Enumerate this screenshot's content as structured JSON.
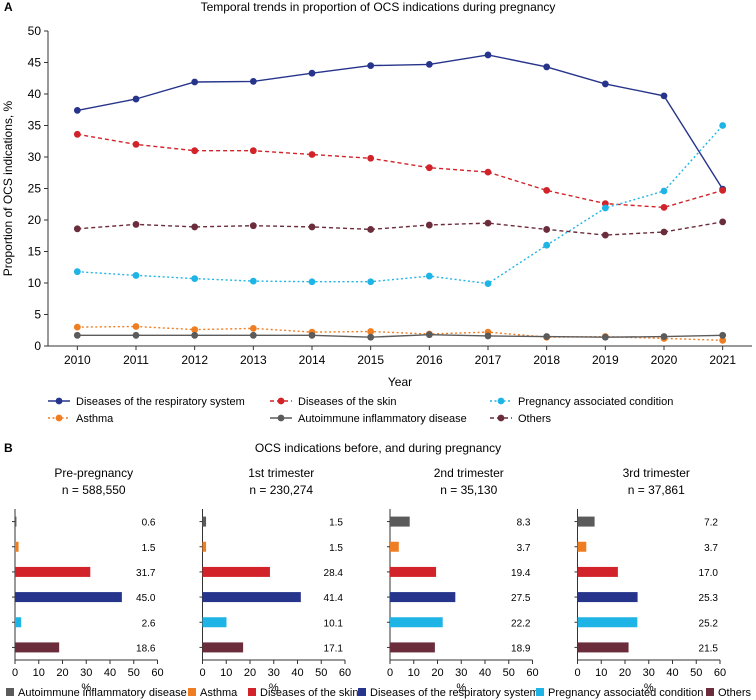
{
  "panelA": {
    "letter": "A"
  },
  "panelB": {
    "letter": "B"
  },
  "colors": {
    "respiratory": "#27348b",
    "skin": "#d2232a",
    "pregnancy": "#1fb4e6",
    "asthma": "#ef7d22",
    "autoimmune": "#5b5b5b",
    "others": "#6b2d3c"
  },
  "chart_data": [
    {
      "type": "line",
      "title": "Temporal trends in proportion of OCS indications during pregnancy",
      "xlabel": "Year",
      "ylabel": "Proportion of OCS indications, %",
      "ylim": [
        0,
        50
      ],
      "yticks": [
        "0",
        "5",
        "10",
        "15",
        "20",
        "25",
        "30",
        "35",
        "40",
        "45",
        "50"
      ],
      "x": [
        "2010",
        "2011",
        "2012",
        "2013",
        "2014",
        "2015",
        "2016",
        "2017",
        "2018",
        "2019",
        "2020",
        "2021"
      ],
      "series": [
        {
          "key": "respiratory",
          "name": "Diseases of the respiratory system",
          "style": "solid",
          "values": [
            37.4,
            39.2,
            41.9,
            42.0,
            43.3,
            44.5,
            44.7,
            46.2,
            44.3,
            41.6,
            39.7,
            24.9
          ]
        },
        {
          "key": "skin",
          "name": "Diseases of the skin",
          "style": "dashed",
          "values": [
            33.6,
            32.0,
            31.0,
            31.0,
            30.4,
            29.8,
            28.3,
            27.6,
            24.7,
            22.6,
            22.0,
            24.7
          ]
        },
        {
          "key": "pregnancy",
          "name": "Pregnancy associated condition",
          "style": "dotted",
          "values": [
            11.8,
            11.2,
            10.7,
            10.3,
            10.2,
            10.2,
            11.1,
            9.9,
            16.0,
            21.9,
            24.6,
            35.0
          ]
        },
        {
          "key": "asthma",
          "name": "Asthma",
          "style": "dotted",
          "values": [
            3.0,
            3.1,
            2.6,
            2.8,
            2.2,
            2.3,
            1.9,
            2.2,
            1.4,
            1.5,
            1.2,
            0.9
          ]
        },
        {
          "key": "autoimmune",
          "name": "Autoimmune inflammatory disease",
          "style": "solid",
          "values": [
            1.7,
            1.7,
            1.7,
            1.7,
            1.7,
            1.4,
            1.8,
            1.6,
            1.5,
            1.4,
            1.5,
            1.7
          ]
        },
        {
          "key": "others",
          "name": "Others",
          "style": "dashed",
          "values": [
            18.6,
            19.3,
            18.9,
            19.1,
            18.9,
            18.5,
            19.2,
            19.5,
            18.5,
            17.6,
            18.1,
            19.7
          ]
        }
      ],
      "legend_position": "bottom"
    },
    {
      "type": "bar",
      "orientation": "horizontal",
      "title": "OCS indications before, and during pregnancy",
      "xlabel": "%",
      "xlim": [
        0,
        60
      ],
      "xticks": [
        "0",
        "10",
        "20",
        "30",
        "40",
        "50",
        "60"
      ],
      "categories": [
        "Autoimmune inflammatory disease",
        "Asthma",
        "Diseases of the skin",
        "Diseases of the respiratory system",
        "Pregnancy associated condition",
        "Others"
      ],
      "category_keys": [
        "autoimmune",
        "asthma",
        "skin",
        "respiratory",
        "pregnancy",
        "others"
      ],
      "panels": [
        {
          "title": "Pre-pregnancy",
          "n": "n = 588,550",
          "values": [
            0.6,
            1.5,
            31.7,
            45.0,
            2.6,
            18.6
          ],
          "labels": [
            "0.6",
            "1.5",
            "31.7",
            "45.0",
            "2.6",
            "18.6"
          ]
        },
        {
          "title": "1st trimester",
          "n": "n = 230,274",
          "values": [
            1.5,
            1.5,
            28.4,
            41.4,
            10.1,
            17.1
          ],
          "labels": [
            "1.5",
            "1.5",
            "28.4",
            "41.4",
            "10.1",
            "17.1"
          ]
        },
        {
          "title": "2nd trimester",
          "n": "n = 35,130",
          "values": [
            8.3,
            3.7,
            19.4,
            27.5,
            22.2,
            18.9
          ],
          "labels": [
            "8.3",
            "3.7",
            "19.4",
            "27.5",
            "22.2",
            "18.9"
          ]
        },
        {
          "title": "3rd trimester",
          "n": "n = 37,861",
          "values": [
            7.2,
            3.7,
            17.0,
            25.3,
            25.2,
            21.5
          ],
          "labels": [
            "7.2",
            "3.7",
            "17.0",
            "25.3",
            "25.2",
            "21.5"
          ]
        }
      ],
      "legend_position": "bottom"
    }
  ]
}
